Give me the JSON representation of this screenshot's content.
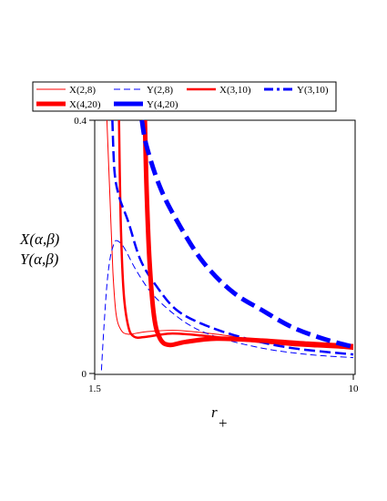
{
  "chart_data": {
    "type": "line",
    "title": "",
    "xlabel_main": "r",
    "xlabel_sub": "+",
    "ylabel": [
      "X(α,β)",
      "Y(α,β)"
    ],
    "xlim": [
      1.5,
      10
    ],
    "ylim": [
      0,
      0.4
    ],
    "x_ticks": [
      "1.5",
      "10"
    ],
    "y_ticks": [
      "0",
      "0.4"
    ],
    "grid": false,
    "legend_position": "top",
    "series": [
      {
        "name": "X(2,8)",
        "color": "#ff0000",
        "dash": "solid",
        "weight": "thin",
        "points": [
          [
            1.9,
            0.4
          ],
          [
            2.0,
            0.28
          ],
          [
            2.1,
            0.16
          ],
          [
            2.2,
            0.095
          ],
          [
            2.35,
            0.07
          ],
          [
            2.6,
            0.062
          ],
          [
            3.2,
            0.066
          ],
          [
            4.2,
            0.068
          ],
          [
            5.5,
            0.062
          ],
          [
            7,
            0.052
          ],
          [
            8.5,
            0.045
          ],
          [
            10,
            0.038
          ]
        ]
      },
      {
        "name": "Y(2,8)",
        "color": "#0000ff",
        "dash": "dash",
        "weight": "thin",
        "points": [
          [
            1.72,
            0.005
          ],
          [
            1.8,
            0.07
          ],
          [
            1.9,
            0.14
          ],
          [
            2.0,
            0.18
          ],
          [
            2.1,
            0.2
          ],
          [
            2.2,
            0.21
          ],
          [
            2.45,
            0.2
          ],
          [
            2.9,
            0.16
          ],
          [
            3.5,
            0.12
          ],
          [
            4.5,
            0.08
          ],
          [
            5.5,
            0.058
          ],
          [
            7,
            0.04
          ],
          [
            8.5,
            0.03
          ],
          [
            10,
            0.025
          ]
        ]
      },
      {
        "name": "X(3,10)",
        "color": "#ff0000",
        "dash": "solid",
        "weight": "medium",
        "points": [
          [
            2.3,
            0.4
          ],
          [
            2.35,
            0.25
          ],
          [
            2.45,
            0.13
          ],
          [
            2.6,
            0.075
          ],
          [
            2.8,
            0.058
          ],
          [
            3.2,
            0.058
          ],
          [
            4,
            0.063
          ],
          [
            5,
            0.06
          ],
          [
            6.5,
            0.052
          ],
          [
            8,
            0.045
          ],
          [
            10,
            0.04
          ]
        ]
      },
      {
        "name": "Y(3,10)",
        "color": "#0000ff",
        "dash": "dash",
        "weight": "medium",
        "points": [
          [
            2.08,
            0.4
          ],
          [
            2.15,
            0.32
          ],
          [
            2.3,
            0.28
          ],
          [
            2.6,
            0.24
          ],
          [
            3,
            0.18
          ],
          [
            3.5,
            0.14
          ],
          [
            4.2,
            0.1
          ],
          [
            5.2,
            0.075
          ],
          [
            6.5,
            0.055
          ],
          [
            8,
            0.04
          ],
          [
            10,
            0.03
          ]
        ]
      },
      {
        "name": "X(4,20)",
        "color": "#ff0000",
        "dash": "solid",
        "weight": "thick",
        "points": [
          [
            3.15,
            0.4
          ],
          [
            3.2,
            0.3
          ],
          [
            3.3,
            0.18
          ],
          [
            3.45,
            0.09
          ],
          [
            3.65,
            0.055
          ],
          [
            3.95,
            0.045
          ],
          [
            4.5,
            0.05
          ],
          [
            5.5,
            0.055
          ],
          [
            7,
            0.052
          ],
          [
            8.5,
            0.047
          ],
          [
            10,
            0.043
          ]
        ]
      },
      {
        "name": "Y(4,20)",
        "color": "#0000ff",
        "dash": "dash",
        "weight": "thick",
        "points": [
          [
            3.05,
            0.4
          ],
          [
            3.2,
            0.36
          ],
          [
            3.6,
            0.3
          ],
          [
            4.1,
            0.25
          ],
          [
            5,
            0.18
          ],
          [
            6,
            0.13
          ],
          [
            7,
            0.1
          ],
          [
            8,
            0.073
          ],
          [
            9,
            0.055
          ],
          [
            10,
            0.042
          ]
        ]
      }
    ]
  }
}
